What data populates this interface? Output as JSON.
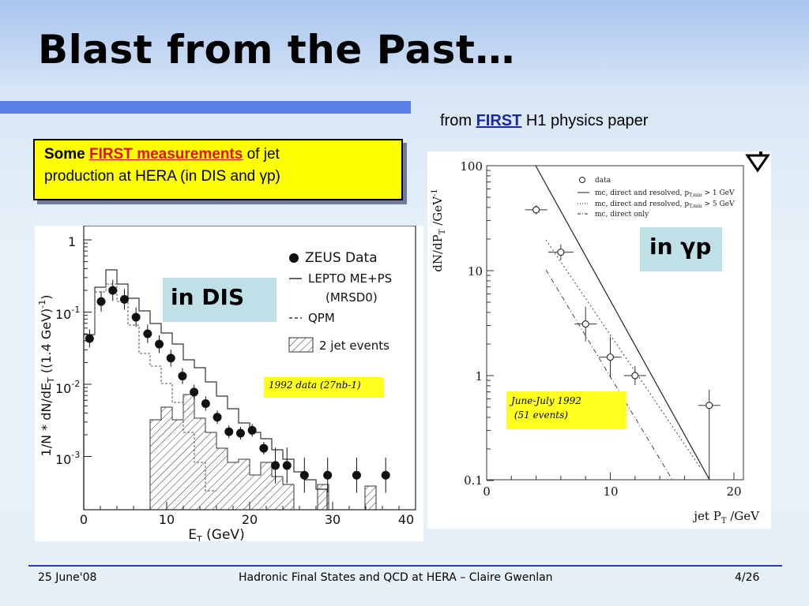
{
  "slide": {
    "title": "Blast from the Past…",
    "source_caption": {
      "prefix": "from ",
      "highlight": "FIRST",
      "suffix": " H1 physics paper"
    },
    "callout": {
      "some": "Some",
      "first_measurements": "FIRST measurements",
      "line1_rest": " of jet",
      "line2": "production at HERA (in DIS and γp)"
    },
    "dis_label": "in DIS",
    "gp_label": "in γp",
    "note_1992": "1992 data  (27nb-1)",
    "note_june_line1": "June-July 1992",
    "note_june_line2": " (51 events)"
  },
  "footer": {
    "date": "25 June'08",
    "center": "Hadronic Final States and QCD at HERA – Claire Gwenlan",
    "page": "4/26"
  },
  "zeus_plot": {
    "ylabel": "1/N * dN/dE",
    "ylabel_sub": "T",
    "ylabel_unit": " ((1.4 GeV)",
    "ylabel_sup": "-1",
    "ylabel_end": ")",
    "xlabel": "E",
    "xlabel_sub": "T",
    "xlabel_unit": " (GeV)",
    "x_ticks": [
      "0",
      "10",
      "20",
      "30",
      "40"
    ],
    "y_tick_top": "1",
    "y_ticks": [
      {
        "base": "10",
        "exp": "-1"
      },
      {
        "base": "10",
        "exp": "-2"
      },
      {
        "base": "10",
        "exp": "-3"
      }
    ],
    "legend": {
      "data": "ZEUS Data",
      "lepto": "LEPTO ME+PS",
      "mrsd0": "(MRSD0)",
      "qpm": "QPM",
      "twojet": "2 jet events"
    },
    "chart_data": {
      "type": "scatter",
      "title": "",
      "xlabel": "ET (GeV)",
      "ylabel": "1/N * dN/dET ((1.4 GeV)-1)",
      "xlim": [
        0,
        40
      ],
      "ylim": [
        0.0004,
        1
      ],
      "y_scale": "log",
      "series": [
        {
          "name": "ZEUS Data",
          "x": [
            0.7,
            2.1,
            3.5,
            4.9,
            6.3,
            7.7,
            9.1,
            10.5,
            11.9,
            13.3,
            14.7,
            16.1,
            17.5,
            18.9,
            20.3,
            21.7,
            23.1,
            24.5,
            26.6,
            29.4,
            32.9,
            36.4
          ],
          "y": [
            0.043,
            0.14,
            0.2,
            0.15,
            0.085,
            0.05,
            0.036,
            0.023,
            0.013,
            0.0078,
            0.0054,
            0.0035,
            0.0022,
            0.0021,
            0.0023,
            0.0013,
            0.00075,
            0.00075,
            0.00055,
            0.00055,
            0.00055,
            0.00055
          ]
        }
      ]
    }
  },
  "h1_plot": {
    "ylabel": "dN/dP",
    "ylabel_sub": "T",
    "ylabel_unit": "  /GeV",
    "ylabel_sup": "-1",
    "xlabel": "jet P",
    "xlabel_sub": "T",
    "xlabel_unit": " /GeV",
    "x_ticks": [
      "0",
      "10",
      "20"
    ],
    "y_ticks": [
      "100",
      "10",
      "1",
      "0.1"
    ],
    "legend": {
      "data": "data",
      "mc_a": "mc, direct and resolved,",
      "mc_a_cut": "> 1 GeV",
      "mc_b": "mc, direct and resolved,",
      "mc_b_cut": "> 5 GeV",
      "mc_c": "mc, direct only",
      "ptmin": "p",
      "ptmin_sub": "T,min"
    },
    "chart_data": {
      "type": "scatter",
      "title": "",
      "xlabel": "jet PT /GeV",
      "ylabel": "dN/dPT /GeV-1",
      "xlim": [
        0,
        22
      ],
      "ylim": [
        0.1,
        100
      ],
      "y_scale": "log",
      "series": [
        {
          "name": "data",
          "x": [
            4,
            6,
            8,
            10,
            12,
            18
          ],
          "y": [
            38,
            15,
            3.1,
            1.5,
            1.0,
            0.52
          ]
        }
      ]
    }
  }
}
